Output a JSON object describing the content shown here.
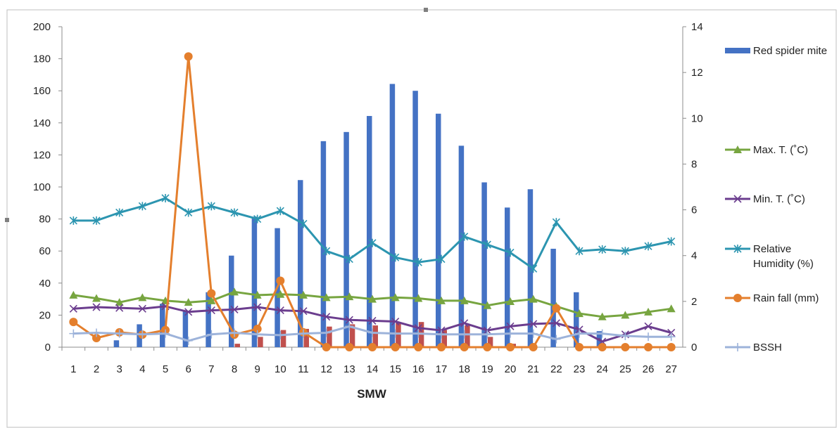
{
  "chart_data": {
    "type": "bar",
    "xlabel": "SMW",
    "x": [
      1,
      2,
      3,
      4,
      5,
      6,
      7,
      8,
      9,
      10,
      11,
      12,
      13,
      14,
      15,
      16,
      17,
      18,
      19,
      20,
      21,
      22,
      23,
      24,
      25,
      26,
      27
    ],
    "ylim_left": [
      0,
      200
    ],
    "yticks_left": [
      0,
      20,
      40,
      60,
      80,
      100,
      120,
      140,
      160,
      180,
      200
    ],
    "ylim_right": [
      0,
      14
    ],
    "yticks_right": [
      0,
      2,
      4,
      6,
      8,
      10,
      12,
      14
    ],
    "grid": false,
    "legend_position": "right",
    "series": [
      {
        "name": "Red spider mite",
        "kind": "bar",
        "axis": "right",
        "color": "#4472c4",
        "values": [
          0,
          0,
          0.3,
          1.0,
          1.9,
          1.6,
          2.4,
          4.0,
          5.7,
          5.2,
          7.3,
          9.0,
          9.4,
          10.1,
          11.5,
          11.2,
          10.2,
          8.8,
          7.2,
          6.1,
          6.9,
          4.3,
          2.4,
          0.7,
          0,
          0,
          0
        ]
      },
      {
        "name": "",
        "kind": "bar",
        "axis": "right",
        "color": "#c0504d",
        "values": [
          0,
          0,
          0,
          0,
          0,
          0,
          0,
          0.15,
          0.45,
          0.75,
          0.8,
          0.9,
          1.0,
          0.95,
          1.05,
          1.1,
          0.75,
          0.95,
          0.45,
          0.15,
          0,
          0,
          0,
          0,
          0,
          0,
          0
        ]
      },
      {
        "name": "Max. T. (˚C)",
        "kind": "line",
        "axis": "left",
        "marker": "triangle",
        "color": "#77a540",
        "values": [
          32.5,
          30.5,
          28,
          31,
          29,
          28,
          29,
          34.5,
          32.5,
          33,
          32.5,
          31,
          31.5,
          30,
          31,
          30.5,
          29,
          29,
          26,
          28.5,
          30,
          25.5,
          21,
          19,
          20,
          22,
          24
        ]
      },
      {
        "name": "Min. T. (˚C)",
        "kind": "line",
        "axis": "left",
        "marker": "x",
        "color": "#6b3d8e",
        "values": [
          24,
          25,
          24.5,
          24,
          25.5,
          22,
          23,
          23.5,
          25,
          23,
          22.5,
          19,
          17,
          16.5,
          16,
          12,
          10.5,
          15,
          10.5,
          13,
          14.5,
          15,
          11,
          3.5,
          8,
          13,
          9
        ]
      },
      {
        "name": "Relative Humidity (%)",
        "kind": "line",
        "axis": "left",
        "marker": "star",
        "color": "#2c95b0",
        "values": [
          79,
          79,
          84,
          88,
          93,
          84,
          88,
          84,
          80,
          85,
          77,
          60,
          55,
          65,
          56,
          53,
          55,
          69,
          64,
          59,
          49,
          78,
          60,
          61,
          60,
          63,
          66
        ]
      },
      {
        "name": "Rain fall (mm)",
        "kind": "line",
        "axis": "right",
        "marker": "circle",
        "color": "#e47f2d",
        "values": [
          1.1,
          0.4,
          0.65,
          0.55,
          0.75,
          12.7,
          2.35,
          0.55,
          0.8,
          2.9,
          0.65,
          0,
          0,
          0,
          0,
          0,
          0,
          0,
          0,
          0,
          0,
          1.7,
          0,
          0,
          0,
          0,
          0
        ]
      },
      {
        "name": "BSSH",
        "kind": "line",
        "axis": "left",
        "marker": "plus",
        "color": "#9db3da",
        "values": [
          8.5,
          9,
          8.5,
          8,
          8.5,
          4,
          8,
          9,
          8,
          7.5,
          8.5,
          9,
          13,
          9,
          8.5,
          8.5,
          8,
          8,
          8,
          8.5,
          8.5,
          5,
          8.5,
          8.5,
          7,
          6.5,
          6.5
        ]
      }
    ]
  }
}
